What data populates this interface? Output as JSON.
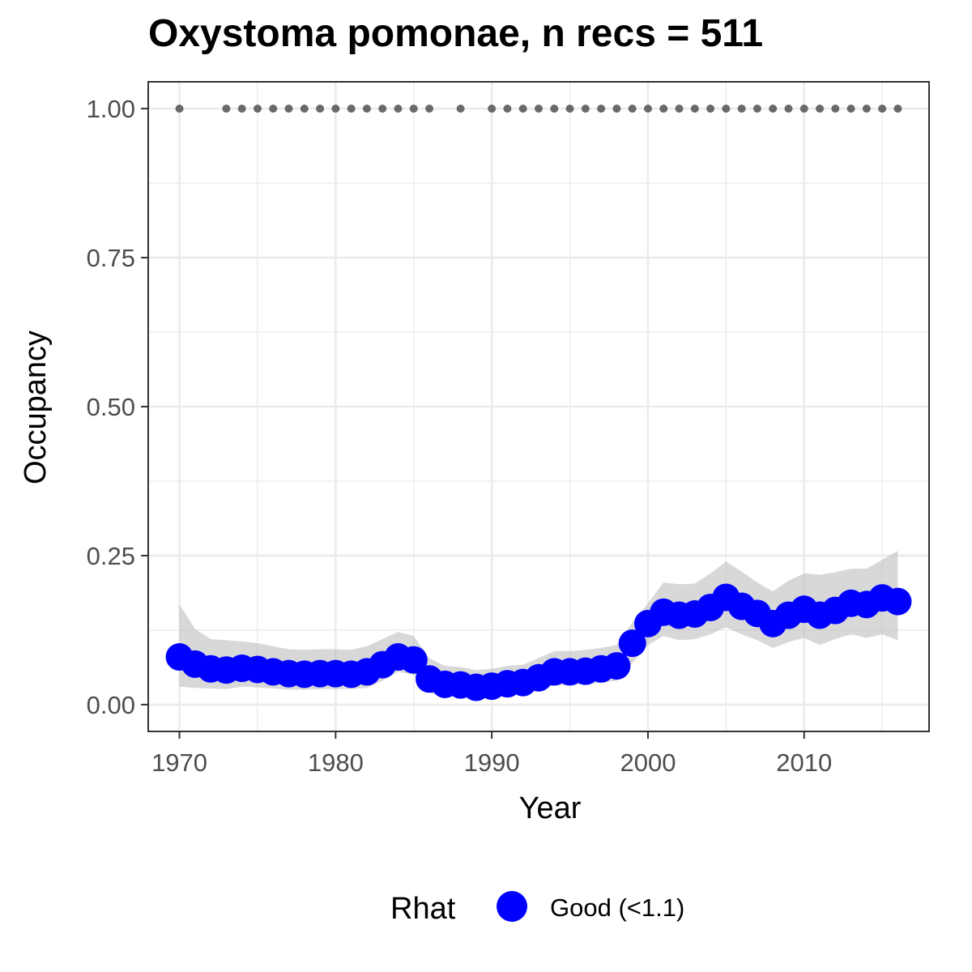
{
  "chart_data": {
    "type": "line",
    "title": "Oxystoma pomonae, n recs = 511",
    "xlabel": "Year",
    "ylabel": "Occupancy",
    "xlim": [
      1968,
      2018
    ],
    "ylim": [
      -0.045,
      1.045
    ],
    "x_ticks": [
      1970,
      1980,
      1990,
      2000,
      2010
    ],
    "x_tick_labels": [
      "1970",
      "1980",
      "1990",
      "2000",
      "2010"
    ],
    "y_ticks": [
      0,
      0.25,
      0.5,
      0.75,
      1
    ],
    "y_tick_labels": [
      "0.00",
      "0.25",
      "0.50",
      "0.75",
      "1.00"
    ],
    "grid": true,
    "series": [
      {
        "name": "Good (<1.1)",
        "color": "#0000ff",
        "x": [
          1970,
          1971,
          1972,
          1973,
          1974,
          1975,
          1976,
          1977,
          1978,
          1979,
          1980,
          1981,
          1982,
          1983,
          1984,
          1985,
          1986,
          1987,
          1988,
          1989,
          1990,
          1991,
          1992,
          1993,
          1994,
          1995,
          1996,
          1997,
          1998,
          1999,
          2000,
          2001,
          2002,
          2003,
          2004,
          2005,
          2006,
          2007,
          2008,
          2009,
          2010,
          2011,
          2012,
          2013,
          2014,
          2015,
          2016
        ],
        "y": [
          0.08,
          0.068,
          0.06,
          0.058,
          0.061,
          0.059,
          0.055,
          0.052,
          0.051,
          0.052,
          0.052,
          0.051,
          0.055,
          0.067,
          0.08,
          0.075,
          0.043,
          0.034,
          0.033,
          0.029,
          0.031,
          0.035,
          0.037,
          0.045,
          0.055,
          0.055,
          0.056,
          0.06,
          0.065,
          0.103,
          0.136,
          0.155,
          0.15,
          0.152,
          0.163,
          0.18,
          0.165,
          0.153,
          0.136,
          0.15,
          0.16,
          0.15,
          0.158,
          0.17,
          0.168,
          0.179,
          0.173
        ],
        "lower": [
          0.03,
          0.028,
          0.027,
          0.026,
          0.03,
          0.029,
          0.027,
          0.025,
          0.025,
          0.026,
          0.026,
          0.026,
          0.028,
          0.04,
          0.055,
          0.05,
          0.02,
          0.014,
          0.014,
          0.012,
          0.013,
          0.016,
          0.018,
          0.024,
          0.032,
          0.033,
          0.034,
          0.037,
          0.04,
          0.07,
          0.1,
          0.115,
          0.108,
          0.11,
          0.118,
          0.13,
          0.118,
          0.108,
          0.095,
          0.105,
          0.112,
          0.1,
          0.11,
          0.118,
          0.112,
          0.118,
          0.108
        ],
        "upper": [
          0.168,
          0.127,
          0.11,
          0.108,
          0.106,
          0.103,
          0.098,
          0.093,
          0.092,
          0.093,
          0.093,
          0.092,
          0.098,
          0.11,
          0.122,
          0.115,
          0.078,
          0.065,
          0.063,
          0.058,
          0.06,
          0.065,
          0.067,
          0.078,
          0.09,
          0.09,
          0.092,
          0.095,
          0.1,
          0.138,
          0.17,
          0.205,
          0.202,
          0.203,
          0.22,
          0.24,
          0.223,
          0.205,
          0.19,
          0.208,
          0.22,
          0.218,
          0.222,
          0.228,
          0.228,
          0.243,
          0.258
        ]
      }
    ],
    "record_years": [
      1970,
      1973,
      1974,
      1975,
      1976,
      1977,
      1978,
      1979,
      1980,
      1981,
      1982,
      1983,
      1984,
      1985,
      1986,
      1988,
      1990,
      1991,
      1992,
      1993,
      1994,
      1995,
      1996,
      1997,
      1998,
      1999,
      2000,
      2001,
      2002,
      2003,
      2004,
      2005,
      2006,
      2007,
      2008,
      2009,
      2010,
      2011,
      2012,
      2013,
      2014,
      2015,
      2016
    ],
    "record_value": 1.0,
    "band_color": "#bebebe",
    "record_dot_color": "#696969",
    "legend": {
      "title": "Rhat",
      "label": "Good (<1.1)",
      "position": "bottom"
    }
  }
}
